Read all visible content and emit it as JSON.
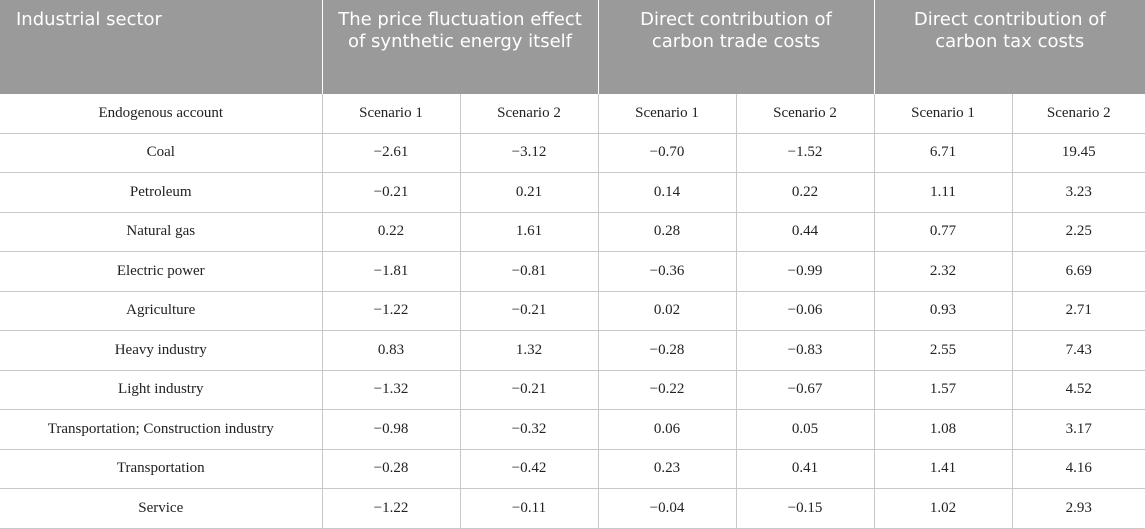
{
  "headers": [
    "Industrial sector",
    "The price fluctuation effect of synthetic energy itself",
    "Direct contribution of carbon trade costs",
    "Direct contribution of carbon tax costs"
  ],
  "subheader": [
    "Endogenous account",
    "Scenario 1",
    "Scenario 2",
    "Scenario 1",
    "Scenario 2",
    "Scenario 1",
    "Scenario 2"
  ],
  "rows": [
    [
      "Coal",
      "−2.61",
      "−3.12",
      "−0.70",
      "−1.52",
      "6.71",
      "19.45"
    ],
    [
      "Petroleum",
      "−0.21",
      "0.21",
      "0.14",
      "0.22",
      "1.11",
      "3.23"
    ],
    [
      "Natural gas",
      "0.22",
      "1.61",
      "0.28",
      "0.44",
      "0.77",
      "2.25"
    ],
    [
      "Electric power",
      "−1.81",
      "−0.81",
      "−0.36",
      "−0.99",
      "2.32",
      "6.69"
    ],
    [
      "Agriculture",
      "−1.22",
      "−0.21",
      "0.02",
      "−0.06",
      "0.93",
      "2.71"
    ],
    [
      "Heavy industry",
      "0.83",
      "1.32",
      "−0.28",
      "−0.83",
      "2.55",
      "7.43"
    ],
    [
      "Light industry",
      "−1.32",
      "−0.21",
      "−0.22",
      "−0.67",
      "1.57",
      "4.52"
    ],
    [
      "Transportation; Construction industry",
      "−0.98",
      "−0.32",
      "0.06",
      "0.05",
      "1.08",
      "3.17"
    ],
    [
      "Transportation",
      "−0.28",
      "−0.42",
      "0.23",
      "0.41",
      "1.41",
      "4.16"
    ],
    [
      "Service",
      "−1.22",
      "−0.11",
      "−0.04",
      "−0.15",
      "1.02",
      "2.93"
    ]
  ]
}
